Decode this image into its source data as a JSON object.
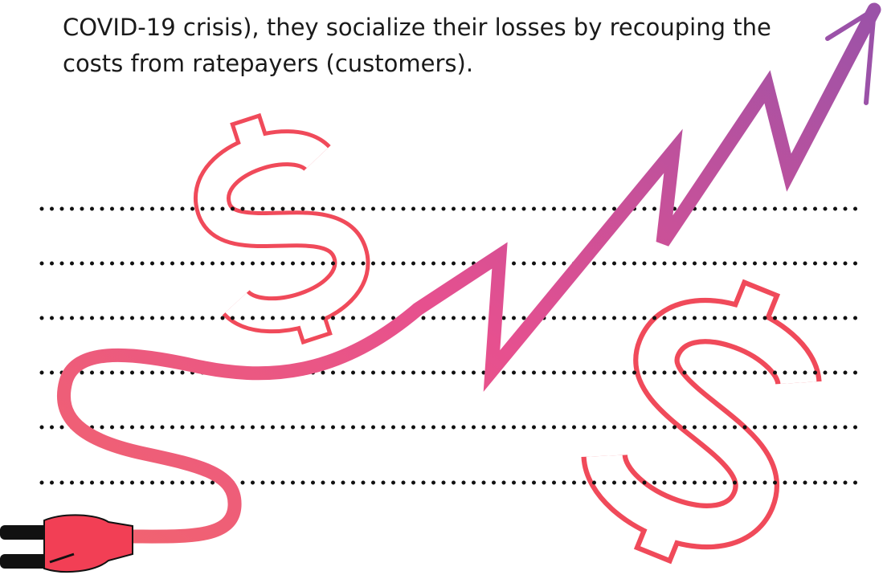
{
  "text": {
    "lines": [
      "COVID-19 crisis), they socialize their losses by recouping the",
      "costs from ratepayers (customers)."
    ]
  }
}
